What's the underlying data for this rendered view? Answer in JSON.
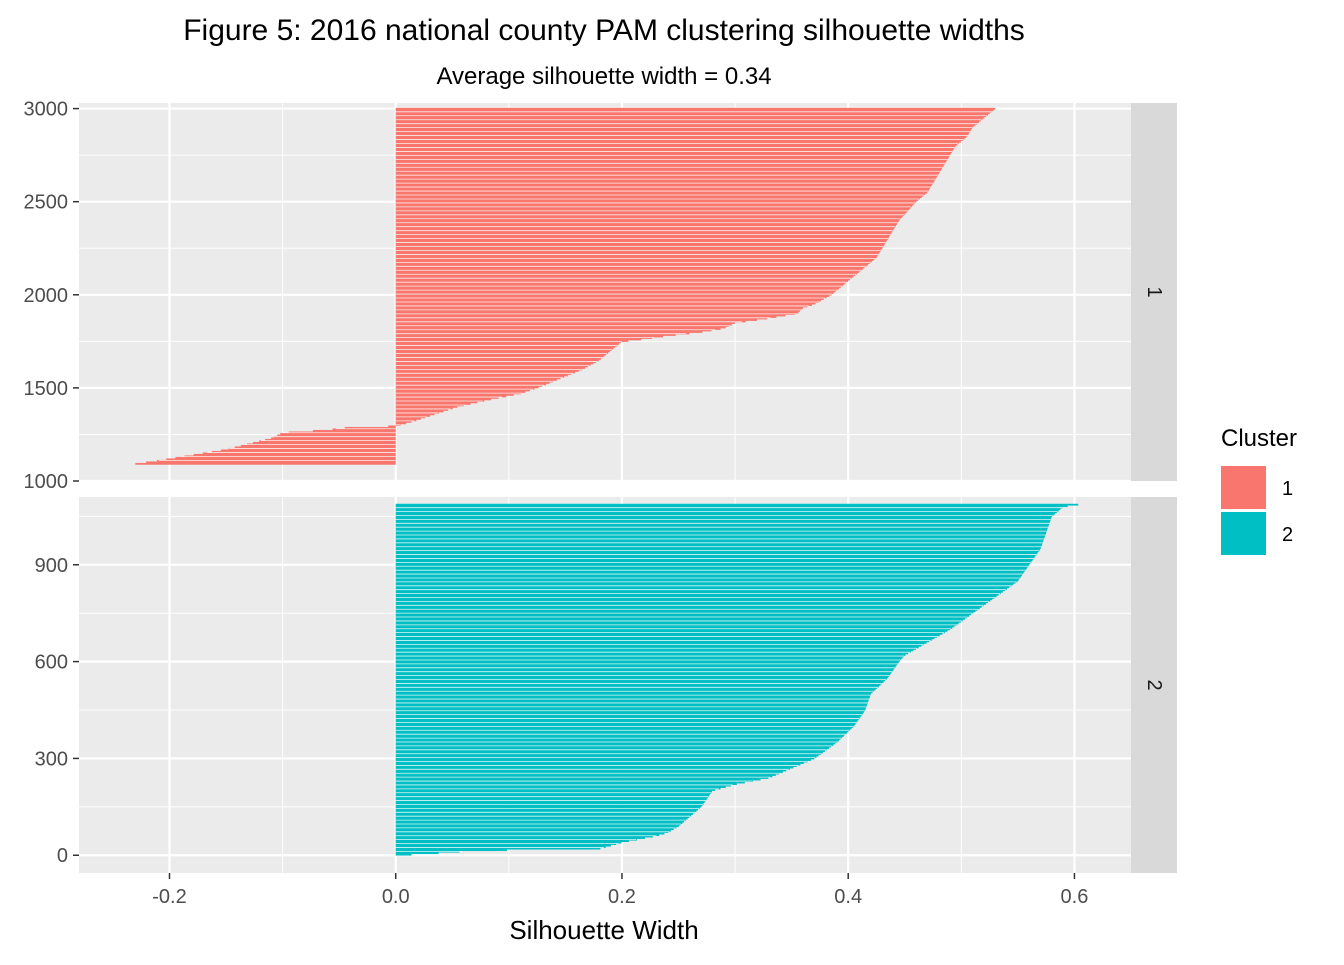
{
  "chart_data": {
    "type": "bar",
    "orientation": "horizontal",
    "title": "Figure 5: 2016 national county PAM clustering silhouette widths",
    "subtitle": "Average silhouette width =  0.34",
    "xlabel": "Silhouette Width",
    "ylabel": "",
    "xlim": [
      -0.28,
      0.65
    ],
    "x_ticks": [
      -0.2,
      0.0,
      0.2,
      0.4,
      0.6
    ],
    "x_tick_labels": [
      "-0.2",
      "0.0",
      "0.2",
      "0.4",
      "0.6"
    ],
    "grid": true,
    "legend": {
      "title": "Cluster",
      "position": "right",
      "items": [
        {
          "label": "1",
          "color": "#F8766D"
        },
        {
          "label": "2",
          "color": "#00BFC4"
        }
      ]
    },
    "facets": [
      {
        "strip_label": "1",
        "color": "#F8766D",
        "ylim": [
          1000,
          3030
        ],
        "y_ticks": [
          1000,
          1500,
          2000,
          2500,
          3000
        ],
        "y_tick_labels": [
          "1000",
          "1500",
          "2000",
          "2500",
          "3000"
        ],
        "curve": {
          "y": [
            1089,
            1110,
            1140,
            1170,
            1200,
            1230,
            1260,
            1275,
            1290,
            1295,
            1320,
            1350,
            1380,
            1400,
            1420,
            1440,
            1470,
            1500,
            1550,
            1600,
            1650,
            1700,
            1750,
            1755,
            1780,
            1800,
            1820,
            1850,
            1870,
            1900,
            1930,
            1950,
            2000,
            2050,
            2100,
            2200,
            2300,
            2400,
            2500,
            2550,
            2600,
            2700,
            2800,
            2850,
            2900,
            2950,
            3000,
            3004
          ],
          "x": [
            -0.235,
            -0.21,
            -0.18,
            -0.15,
            -0.13,
            -0.11,
            -0.1,
            -0.06,
            -0.04,
            0.0,
            0.015,
            0.03,
            0.045,
            0.055,
            0.07,
            0.085,
            0.11,
            0.125,
            0.145,
            0.165,
            0.18,
            0.19,
            0.2,
            0.21,
            0.24,
            0.27,
            0.29,
            0.3,
            0.325,
            0.355,
            0.36,
            0.37,
            0.385,
            0.395,
            0.405,
            0.425,
            0.435,
            0.445,
            0.46,
            0.47,
            0.475,
            0.485,
            0.495,
            0.505,
            0.51,
            0.52,
            0.53,
            0.532
          ]
        }
      },
      {
        "strip_label": "2",
        "color": "#00BFC4",
        "ylim": [
          -55,
          1110
        ],
        "y_ticks": [
          0,
          300,
          600,
          900
        ],
        "y_tick_labels": [
          "0",
          "300",
          "600",
          "900"
        ],
        "curve": {
          "y": [
            0,
            5,
            15,
            20,
            40,
            60,
            70,
            90,
            150,
            200,
            220,
            240,
            270,
            300,
            350,
            400,
            450,
            500,
            550,
            600,
            620,
            650,
            700,
            800,
            850,
            900,
            950,
            1000,
            1050,
            1080,
            1089
          ],
          "x": [
            0.0,
            0.03,
            0.07,
            0.18,
            0.2,
            0.23,
            0.24,
            0.25,
            0.27,
            0.28,
            0.3,
            0.33,
            0.35,
            0.37,
            0.39,
            0.405,
            0.415,
            0.42,
            0.435,
            0.445,
            0.45,
            0.465,
            0.49,
            0.53,
            0.55,
            0.56,
            0.57,
            0.575,
            0.58,
            0.59,
            0.608
          ]
        }
      }
    ]
  }
}
